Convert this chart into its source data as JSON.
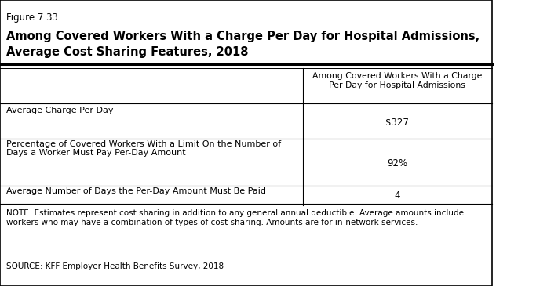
{
  "figure_label": "Figure 7.33",
  "title_line1": "Among Covered Workers With a Charge Per Day for Hospital Admissions,",
  "title_line2": "Average Cost Sharing Features, 2018",
  "col_header": "Among Covered Workers With a Charge\nPer Day for Hospital Admissions",
  "rows": [
    {
      "label": "Average Charge Per Day",
      "value": "$327"
    },
    {
      "label": "Percentage of Covered Workers With a Limit On the Number of\nDays a Worker Must Pay Per-Day Amount",
      "value": "92%"
    },
    {
      "label": "Average Number of Days the Per-Day Amount Must Be Paid",
      "value": "4"
    }
  ],
  "note": "NOTE: Estimates represent cost sharing in addition to any general annual deductible. Average amounts include\nworkers who may have a combination of types of cost sharing. Amounts are for in-network services.",
  "source": "SOURCE: KFF Employer Health Benefits Survey, 2018",
  "bg_color": "#ffffff",
  "border_color": "#000000",
  "col_split": 0.615
}
